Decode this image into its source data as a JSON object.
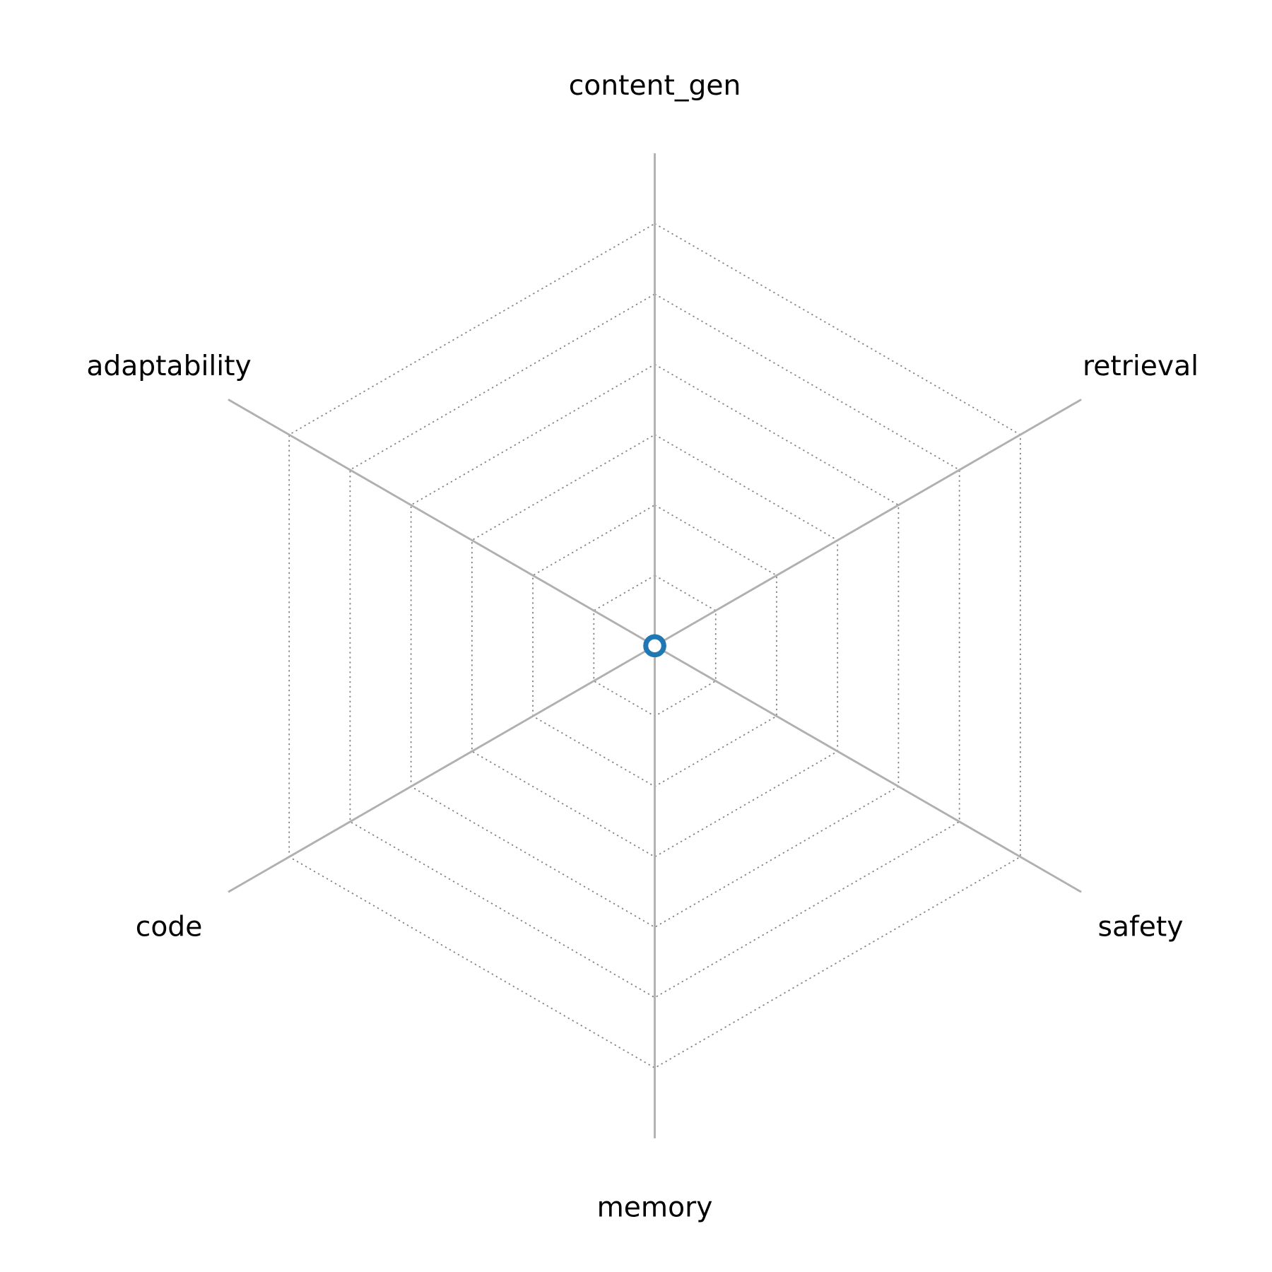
{
  "chart_data": {
    "type": "radar",
    "title": "",
    "axes": [
      "content_gen",
      "retrieval",
      "safety",
      "memory",
      "code",
      "adaptability"
    ],
    "series": [
      {
        "values": [
          0,
          0,
          0,
          0,
          0,
          0
        ],
        "color": "#1f77b4"
      }
    ],
    "rlim": [
      0,
      7
    ],
    "grid_levels": [
      1,
      2,
      3,
      4,
      5,
      6
    ],
    "grid": true,
    "axis_color": "#b0b0b0",
    "grid_color": "#808080"
  }
}
